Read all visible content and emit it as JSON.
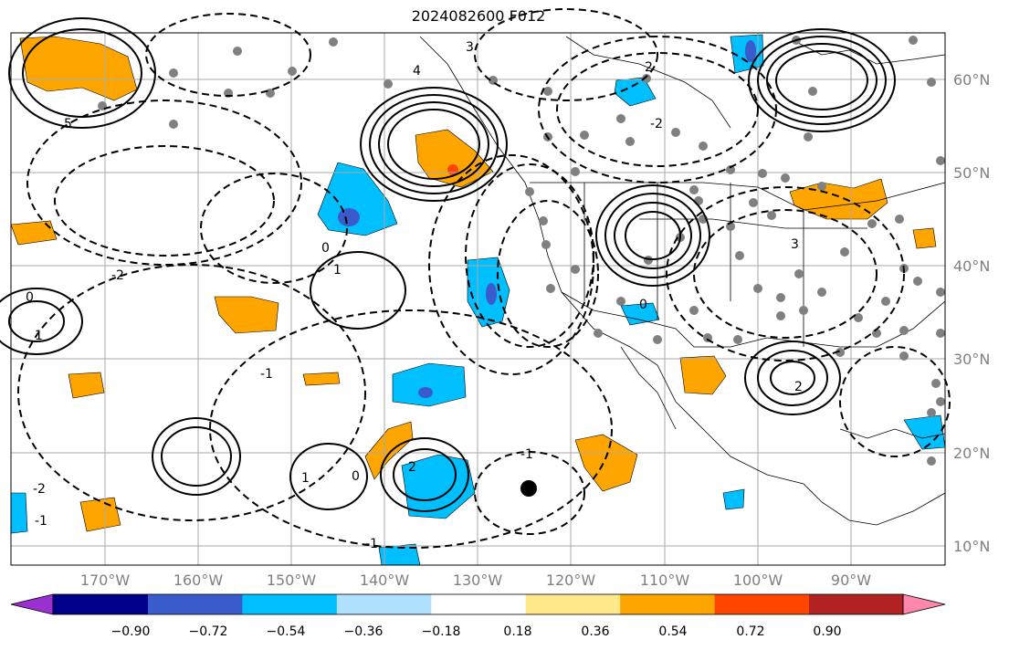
{
  "title": "2024082600 F012",
  "lat_labels": [
    "60°N",
    "50°N",
    "40°N",
    "30°N",
    "20°N",
    "10°N"
  ],
  "lon_labels": [
    "170°W",
    "160°W",
    "150°W",
    "140°W",
    "130°W",
    "120°W",
    "110°W",
    "100°W",
    "90°W"
  ],
  "colorbar": {
    "ticks": [
      "−0.90",
      "−0.72",
      "−0.54",
      "−0.36",
      "−0.18",
      "0.18",
      "0.36",
      "0.54",
      "0.72",
      "0.90"
    ],
    "colors": [
      "#9b30d0",
      "#00008b",
      "#3a5bcc",
      "#00bfff",
      "#b0e0ff",
      "#ffffff",
      "#ffe88a",
      "#ffa500",
      "#ff4500",
      "#b22222",
      "#ff88aa"
    ]
  },
  "contour_labels": [
    "5",
    "4",
    "3",
    "2",
    "1",
    "0",
    "-1",
    "-2",
    "1",
    "0",
    "-1",
    "2",
    "3",
    "0",
    "-1",
    "2",
    "-2",
    "1",
    "0",
    "-1",
    "-2"
  ],
  "colors": {
    "grid": "#aaaaaa",
    "positive": "#ffa500",
    "negative": "#00bfff",
    "station": "#808080",
    "frame": "#000000"
  }
}
